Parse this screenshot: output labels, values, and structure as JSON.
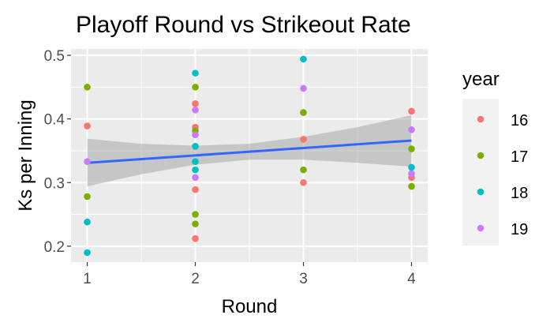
{
  "chart_data": {
    "type": "scatter",
    "title": "Playoff Round vs Strikeout Rate",
    "xlabel": "Round",
    "ylabel": "Ks per Inning",
    "xlim": [
      0.85,
      4.15
    ],
    "ylim": [
      0.175,
      0.51
    ],
    "x_ticks": [
      1,
      2,
      3,
      4
    ],
    "y_ticks": [
      0.2,
      0.3,
      0.4,
      0.5
    ],
    "x_tick_labels": [
      "1",
      "2",
      "3",
      "4"
    ],
    "y_tick_labels": [
      "0.2",
      "0.3",
      "0.4",
      "0.5"
    ],
    "grid": true,
    "legend": {
      "title": "year",
      "position": "right",
      "entries": [
        {
          "label": "16",
          "color": "#F8766D"
        },
        {
          "label": "17",
          "color": "#7CAE00"
        },
        {
          "label": "18",
          "color": "#00BFC4"
        },
        {
          "label": "19",
          "color": "#C77CFF"
        }
      ]
    },
    "series": [
      {
        "name": "16",
        "color": "#F8766D",
        "x": [
          1,
          2,
          2,
          2,
          2,
          3,
          3,
          4,
          4
        ],
        "y": [
          0.389,
          0.424,
          0.387,
          0.289,
          0.212,
          0.368,
          0.3,
          0.412,
          0.308
        ]
      },
      {
        "name": "17",
        "color": "#7CAE00",
        "x": [
          1,
          1,
          2,
          2,
          2,
          2,
          3,
          3,
          4,
          4
        ],
        "y": [
          0.45,
          0.278,
          0.45,
          0.381,
          0.25,
          0.235,
          0.41,
          0.32,
          0.353,
          0.294
        ]
      },
      {
        "name": "18",
        "color": "#00BFC4",
        "x": [
          1,
          1,
          2,
          2,
          2,
          2,
          3,
          4
        ],
        "y": [
          0.238,
          0.19,
          0.472,
          0.357,
          0.333,
          0.32,
          0.494,
          0.324
        ]
      },
      {
        "name": "19",
        "color": "#C77CFF",
        "x": [
          1,
          2,
          2,
          2,
          3,
          4,
          4
        ],
        "y": [
          0.333,
          0.414,
          0.375,
          0.308,
          0.448,
          0.383,
          0.314
        ]
      }
    ],
    "trend_line": {
      "method": "lm",
      "color": "#3366FF",
      "x": [
        1,
        4
      ],
      "y": [
        0.331,
        0.366
      ]
    },
    "confidence_band": {
      "color": "#999999",
      "x": [
        1,
        1.5,
        2,
        2.5,
        3,
        3.5,
        4
      ],
      "lower": [
        0.294,
        0.313,
        0.328,
        0.336,
        0.336,
        0.331,
        0.325
      ],
      "upper": [
        0.369,
        0.361,
        0.358,
        0.361,
        0.372,
        0.387,
        0.406
      ]
    }
  }
}
